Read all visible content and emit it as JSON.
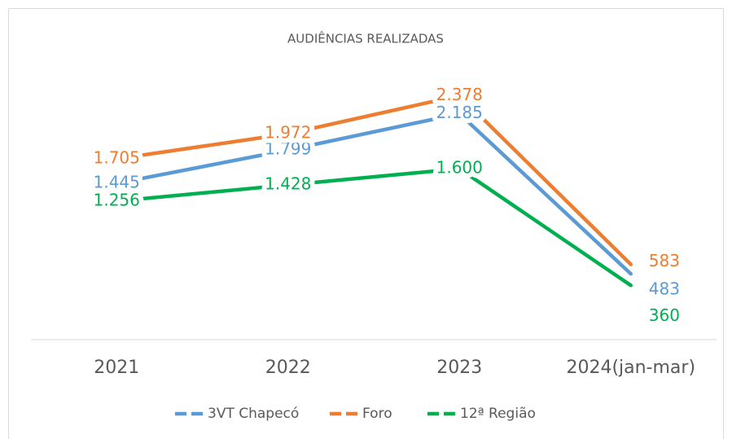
{
  "chart_data": {
    "type": "line",
    "title": "AUDIÊNCIAS REALIZADAS",
    "categories": [
      "2021",
      "2022",
      "2023",
      "2024(jan-mar)"
    ],
    "series": [
      {
        "name": "3VT Chapecó",
        "color": "#5b9bd5",
        "values": [
          1445,
          1799,
          2185,
          483
        ],
        "value_labels": [
          "1.445",
          "1.799",
          "2.185",
          "483"
        ]
      },
      {
        "name": "Foro",
        "color": "#ed7d31",
        "values": [
          1705,
          1972,
          2378,
          583
        ],
        "value_labels": [
          "1.705",
          "1.972",
          "2.378",
          "583"
        ]
      },
      {
        "name": "12ª Região",
        "color": "#00b050",
        "values": [
          1256,
          1428,
          1600,
          360
        ],
        "value_labels": [
          "1.256",
          "1.428",
          "1.600",
          "360"
        ]
      }
    ]
  }
}
